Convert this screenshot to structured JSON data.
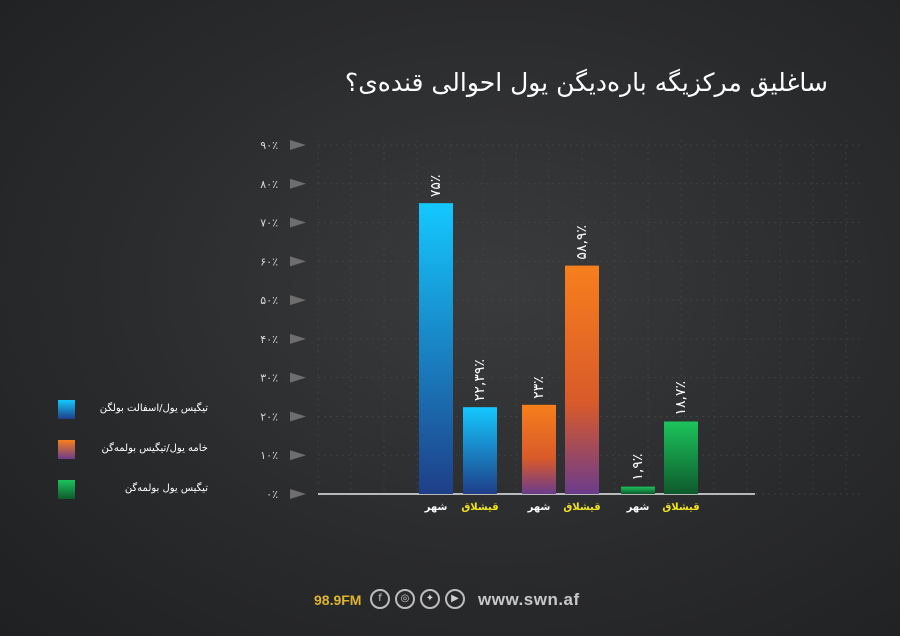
{
  "colors": {
    "series1": "#17a8f5",
    "series2": "#f07a1c",
    "series3": "#18b858",
    "village_label": "#f2e41c",
    "city_label": "#ffffff",
    "axis": "#d8d8d8",
    "grid": "#4a4b4d"
  },
  "chart_data": {
    "type": "bar",
    "title": "ساغلیق مرکزیگه باره‌دیگن یول احوالی قنده‌ی؟",
    "ylim": [
      0,
      90
    ],
    "yticks": [
      "۰٪",
      "۱۰٪",
      "۲۰٪",
      "۳۰٪",
      "۴۰٪",
      "۵۰٪",
      "۶۰٪",
      "۷۰٪",
      "۸۰٪",
      "۹۰٪"
    ],
    "grid": true,
    "legend_position": "left",
    "series": [
      {
        "name": "تیگیس یول/اسفالت بولگن",
        "color": "#17a8f5",
        "categories": [
          "شهر",
          "قیشلاق"
        ],
        "values": [
          75,
          22.39
        ],
        "value_labels": [
          "۷۵٪",
          "۲۲,۳۹٪"
        ]
      },
      {
        "name": "خامه یول/تیگیس بولمه‌گن",
        "color": "#f07a1c",
        "categories": [
          "شهر",
          "قیشلاق"
        ],
        "values": [
          23,
          58.9
        ],
        "value_labels": [
          "۲۳٪",
          "۵۸,۹٪"
        ]
      },
      {
        "name": "تیگیس یول بولمه‌گن",
        "color": "#18b858",
        "categories": [
          "شهر",
          "قیشلاق"
        ],
        "values": [
          1.9,
          18.7
        ],
        "value_labels": [
          "۱,۹٪",
          "۱۸,۷٪"
        ]
      }
    ]
  },
  "footer": {
    "frequency": "98.9FM",
    "social_icons": [
      "facebook-icon",
      "instagram-icon",
      "twitter-icon",
      "youtube-icon"
    ],
    "website": "www.swn.af"
  }
}
